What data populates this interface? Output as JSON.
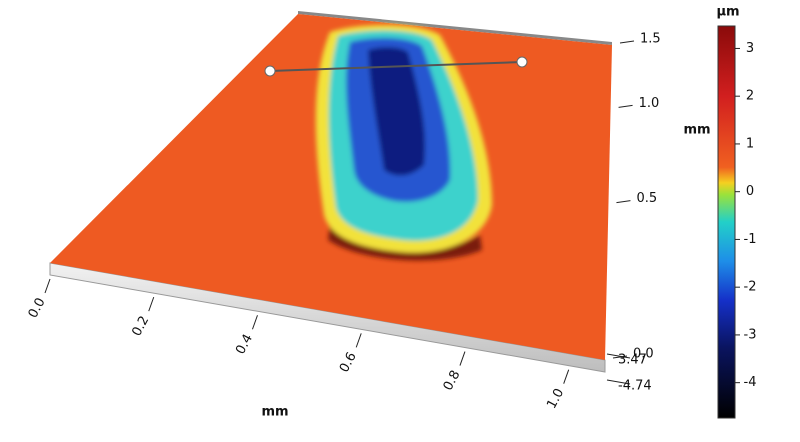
{
  "chart_data": {
    "type": "surface3d",
    "xlabel": "mm",
    "ylabel": "mm",
    "colorbar_label": "µm",
    "xlim": [
      0,
      1.07
    ],
    "xticks": [
      {
        "value": 0,
        "label": "0.0"
      },
      0.2,
      0.4,
      0.6,
      0.8,
      {
        "value": 1,
        "label": "1.0"
      }
    ],
    "ylim": [
      0,
      1.5
    ],
    "yticks": [
      {
        "value": 0,
        "label": "0.0"
      },
      0.5,
      {
        "value": 1,
        "label": "1.0"
      },
      1.5
    ],
    "zlim": [
      -4.74,
      3.47
    ],
    "zticks": [
      3.47,
      -4.74
    ],
    "clim": [
      -4.74,
      3.47
    ],
    "cticks": [
      -4,
      -3,
      -2,
      -1,
      0,
      1,
      2,
      3
    ]
  }
}
